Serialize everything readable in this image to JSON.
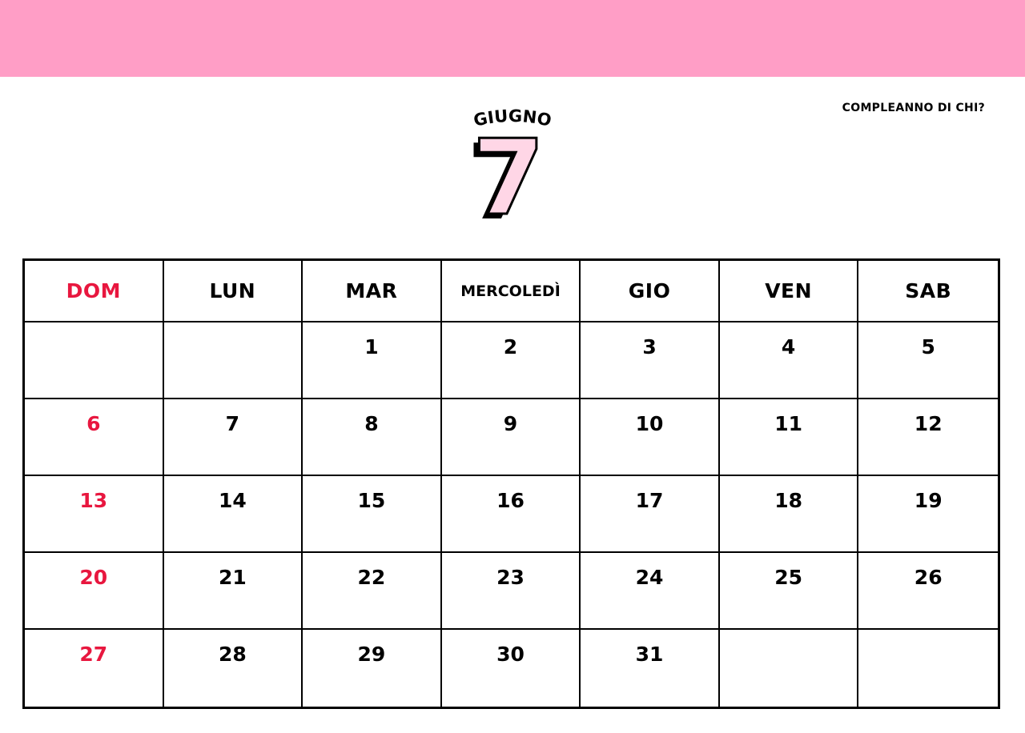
{
  "header": {
    "month": "GIUGNO",
    "day_number": "7",
    "note": "COMPLEANNO DI CHI?"
  },
  "colors": {
    "top_bar": "#ff9ec6",
    "sunday": "#e8173f",
    "day_fill": "#ffd6e6"
  },
  "calendar": {
    "weekdays": [
      "DOM",
      "LUN",
      "MAR",
      "MERCOLEDÌ",
      "GIO",
      "VEN",
      "SAB"
    ],
    "weeks": [
      [
        "",
        "",
        "1",
        "2",
        "3",
        "4",
        "5"
      ],
      [
        "6",
        "7",
        "8",
        "9",
        "10",
        "11",
        "12"
      ],
      [
        "13",
        "14",
        "15",
        "16",
        "17",
        "18",
        "19"
      ],
      [
        "20",
        "21",
        "22",
        "23",
        "24",
        "25",
        "26"
      ],
      [
        "27",
        "28",
        "29",
        "30",
        "31",
        "",
        ""
      ]
    ]
  }
}
